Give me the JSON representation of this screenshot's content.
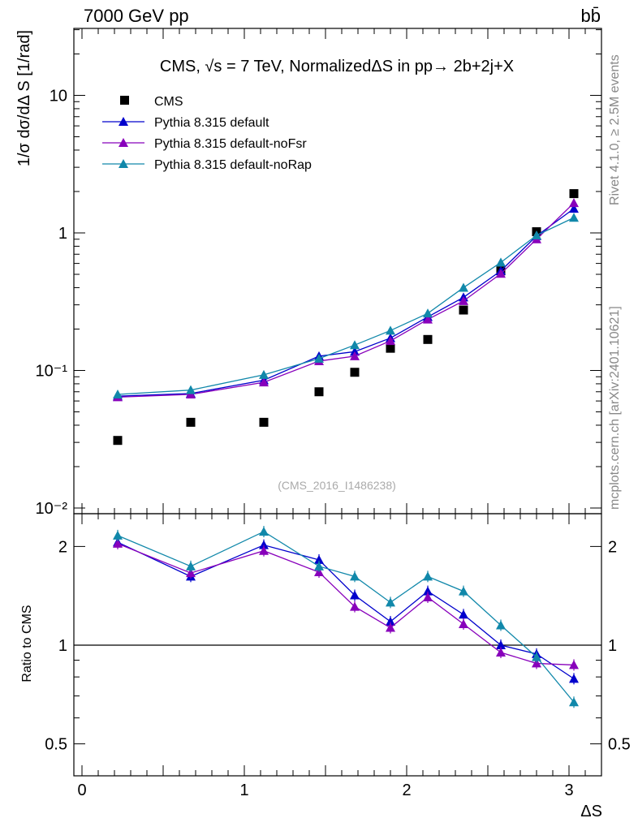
{
  "header": {
    "energy_label": "7000 GeV pp",
    "process_label": "bb̄",
    "side_label_top": "Rivet 4.1.0, ≥ 2.5M events",
    "side_label_bottom": "mcplots.cern.ch [arXiv:2401.10621]",
    "plot_title": "CMS, √s = 7 TeV, NormalizedΔS in pp→  2b+2j+X",
    "analysis_id": "(CMS_2016_I1486238)"
  },
  "chart_data": [
    {
      "type": "scatter",
      "name": "main",
      "xlabel": "ΔS",
      "ylabel": "1/σ dσ/dΔ S [1/rad]",
      "yscale": "log",
      "ylim": [
        0.01,
        30
      ],
      "xlim": [
        -0.05,
        3.2
      ],
      "y_ticks": [
        "10⁻²",
        "10⁻¹",
        "1",
        "10"
      ],
      "x": [
        0.22,
        0.67,
        1.12,
        1.46,
        1.68,
        1.9,
        2.13,
        2.35,
        2.58,
        2.8,
        3.03
      ],
      "series": [
        {
          "name": "CMS",
          "marker": "square",
          "color": "#000000",
          "values": [
            0.031,
            0.042,
            0.042,
            0.07,
            0.097,
            0.145,
            0.168,
            0.275,
            0.53,
            1.02,
            1.93
          ]
        },
        {
          "name": "Pythia 8.315 default",
          "marker": "triangle",
          "color": "#0000cc",
          "values": [
            0.065,
            0.068,
            0.085,
            0.127,
            0.137,
            0.172,
            0.245,
            0.34,
            0.53,
            0.95,
            1.5
          ]
        },
        {
          "name": "Pythia 8.315 default-noFsr",
          "marker": "triangle",
          "color": "#8800bb",
          "values": [
            0.064,
            0.067,
            0.082,
            0.117,
            0.127,
            0.164,
            0.235,
            0.32,
            0.505,
            0.9,
            1.65
          ]
        },
        {
          "name": "Pythia 8.315 default-noRap",
          "marker": "triangle",
          "color": "#1188aa",
          "values": [
            0.067,
            0.072,
            0.093,
            0.122,
            0.153,
            0.195,
            0.26,
            0.4,
            0.61,
            0.96,
            1.29
          ]
        }
      ]
    },
    {
      "type": "line",
      "name": "ratio",
      "xlabel": "ΔS",
      "ylabel": "Ratio to CMS",
      "yscale": "log",
      "ylim": [
        0.4,
        2.5
      ],
      "xlim": [
        -0.05,
        3.2
      ],
      "y_ticks": [
        "0.5",
        "1",
        "2"
      ],
      "x_ticks": [
        "0",
        "1",
        "2",
        "3"
      ],
      "x": [
        0.22,
        0.67,
        1.12,
        1.46,
        1.68,
        1.9,
        2.13,
        2.35,
        2.58,
        2.8,
        3.03
      ],
      "series": [
        {
          "name": "Pythia 8.315 default",
          "color": "#0000cc",
          "values": [
            2.06,
            1.62,
            2.02,
            1.82,
            1.42,
            1.18,
            1.46,
            1.24,
            1.0,
            0.94,
            0.79
          ]
        },
        {
          "name": "Pythia 8.315 default-noFsr",
          "color": "#8800bb",
          "values": [
            2.04,
            1.66,
            1.94,
            1.67,
            1.31,
            1.13,
            1.4,
            1.16,
            0.95,
            0.88,
            0.87
          ]
        },
        {
          "name": "Pythia 8.315 default-noRap",
          "color": "#1188aa",
          "values": [
            2.16,
            1.74,
            2.22,
            1.74,
            1.62,
            1.35,
            1.62,
            1.46,
            1.15,
            0.92,
            0.67
          ]
        }
      ]
    }
  ]
}
